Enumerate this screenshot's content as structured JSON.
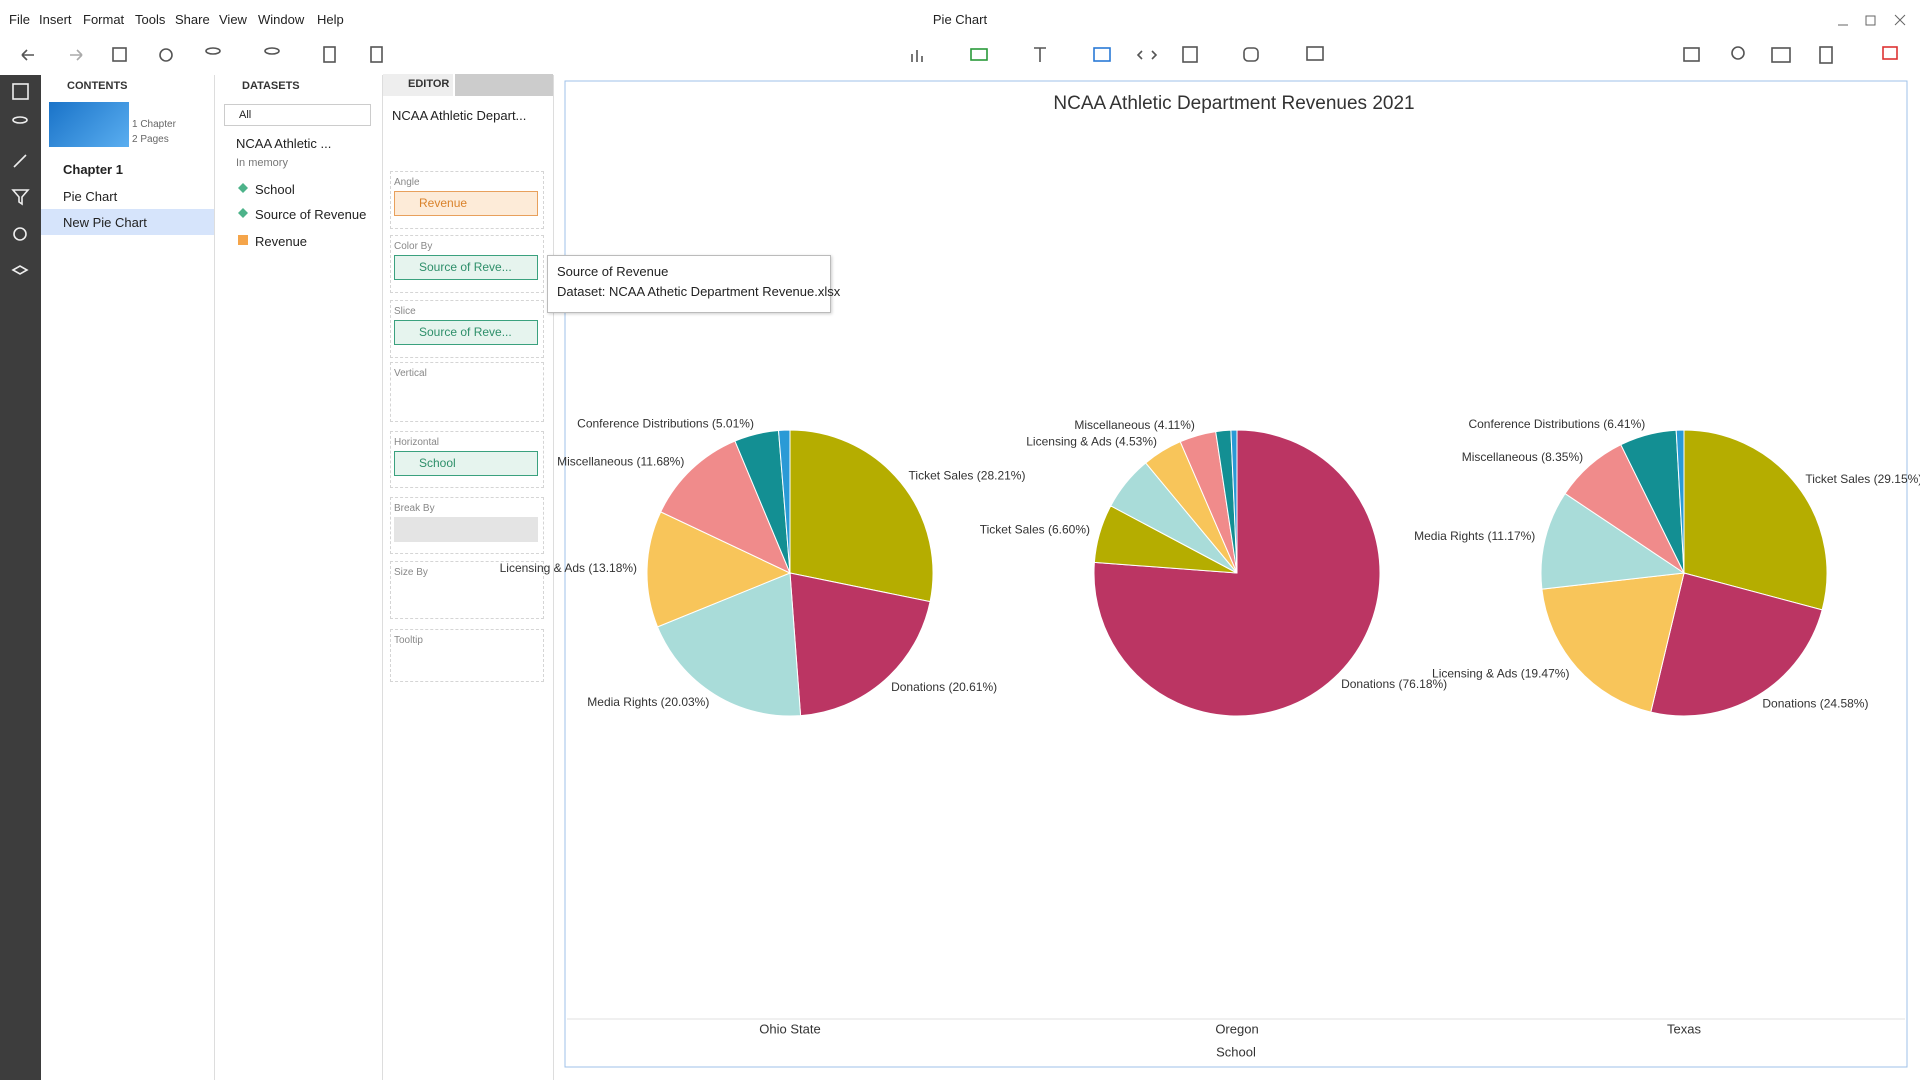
{
  "window_title": "Pie Chart",
  "menu": [
    "File",
    "Insert",
    "Format",
    "Tools",
    "Share",
    "View",
    "Window",
    "Help"
  ],
  "contents": {
    "title": "CONTENTS",
    "chapter_count": "1 Chapter",
    "page_count": "2 Pages",
    "chapter": "Chapter 1",
    "pages": [
      "Pie Chart",
      "New Pie Chart"
    ]
  },
  "datasets": {
    "title": "DATASETS",
    "filter": "All",
    "dataset": "NCAA Athletic ...",
    "status": "In memory",
    "fields": [
      "School",
      "Source of Revenue",
      "Revenue"
    ]
  },
  "editor": {
    "tab": "EDITOR",
    "chart_name": "NCAA Athletic Depart...",
    "slots": [
      {
        "label": "Angle",
        "value": "Revenue"
      },
      {
        "label": "Color By",
        "value": "Source of Reve..."
      },
      {
        "label": "Slice",
        "value": "Source of Reve..."
      },
      {
        "label": "Vertical"
      },
      {
        "label": "Horizontal",
        "value": "School"
      },
      {
        "label": "Break By"
      },
      {
        "label": "Size By"
      },
      {
        "label": "Tooltip"
      }
    ]
  },
  "tooltip": {
    "title": "Source of Revenue",
    "dataset": "Dataset: NCAA Athetic Department Revenue.xlsx"
  },
  "chart_data": {
    "type": "pie",
    "title": "NCAA Athletic Department Revenues 2021",
    "xlabel": "School",
    "pies": [
      {
        "name": "Ohio State",
        "slices": [
          {
            "name": "Ticket Sales",
            "value": 28.21,
            "value_label": "(28.21%)",
            "color": "#b5ad00"
          },
          {
            "name": "Donations",
            "value": 20.61,
            "value_label": "(20.61%)",
            "color": "#bb3563"
          },
          {
            "name": "Media Rights",
            "value": 20.03,
            "value_label": "(20.03%)",
            "color": "#a9dcd9"
          },
          {
            "name": "Licensing & Ads",
            "value": 13.18,
            "value_label": "(13.18%)",
            "color": "#f8c55a"
          },
          {
            "name": "Miscellaneous",
            "value": 11.68,
            "value_label": "(11.68%)",
            "color": "#f08b8b"
          },
          {
            "name": "Conference Distributions",
            "value": 5.01,
            "value_label": "(5.01%)",
            "color": "#138f93"
          },
          {
            "name": null,
            "value": 1.28,
            "color": "#2a9ad6"
          }
        ]
      },
      {
        "name": "Oregon",
        "slices": [
          {
            "name": "Donations",
            "value": 76.18,
            "value_label": "(76.18%)",
            "color": "#bb3563"
          },
          {
            "name": "Ticket Sales",
            "value": 6.6,
            "value_label": "(6.60%)",
            "color": "#b5ad00"
          },
          {
            "name": null,
            "value": 6.2,
            "color": "#a9dcd9"
          },
          {
            "name": "Licensing & Ads",
            "value": 4.53,
            "value_label": "(4.53%)",
            "color": "#f8c55a"
          },
          {
            "name": "Miscellaneous",
            "value": 4.11,
            "value_label": "(4.11%)",
            "color": "#f08b8b"
          },
          {
            "name": null,
            "value": 1.7,
            "color": "#138f93"
          },
          {
            "name": null,
            "value": 0.68,
            "color": "#2a9ad6"
          }
        ]
      },
      {
        "name": "Texas",
        "slices": [
          {
            "name": "Ticket Sales",
            "value": 29.15,
            "value_label": "(29.15%)",
            "color": "#b5ad00"
          },
          {
            "name": "Donations",
            "value": 24.58,
            "value_label": "(24.58%)",
            "color": "#bb3563"
          },
          {
            "name": "Licensing & Ads",
            "value": 19.47,
            "value_label": "(19.47%)",
            "color": "#f8c55a"
          },
          {
            "name": "Media Rights",
            "value": 11.17,
            "value_label": "(11.17%)",
            "color": "#a9dcd9"
          },
          {
            "name": "Miscellaneous",
            "value": 8.35,
            "value_label": "(8.35%)",
            "color": "#f08b8b"
          },
          {
            "name": "Conference Distributions",
            "value": 6.41,
            "value_label": "(6.41%)",
            "color": "#138f93"
          },
          {
            "name": null,
            "value": 0.87,
            "color": "#2a9ad6"
          }
        ]
      }
    ]
  }
}
